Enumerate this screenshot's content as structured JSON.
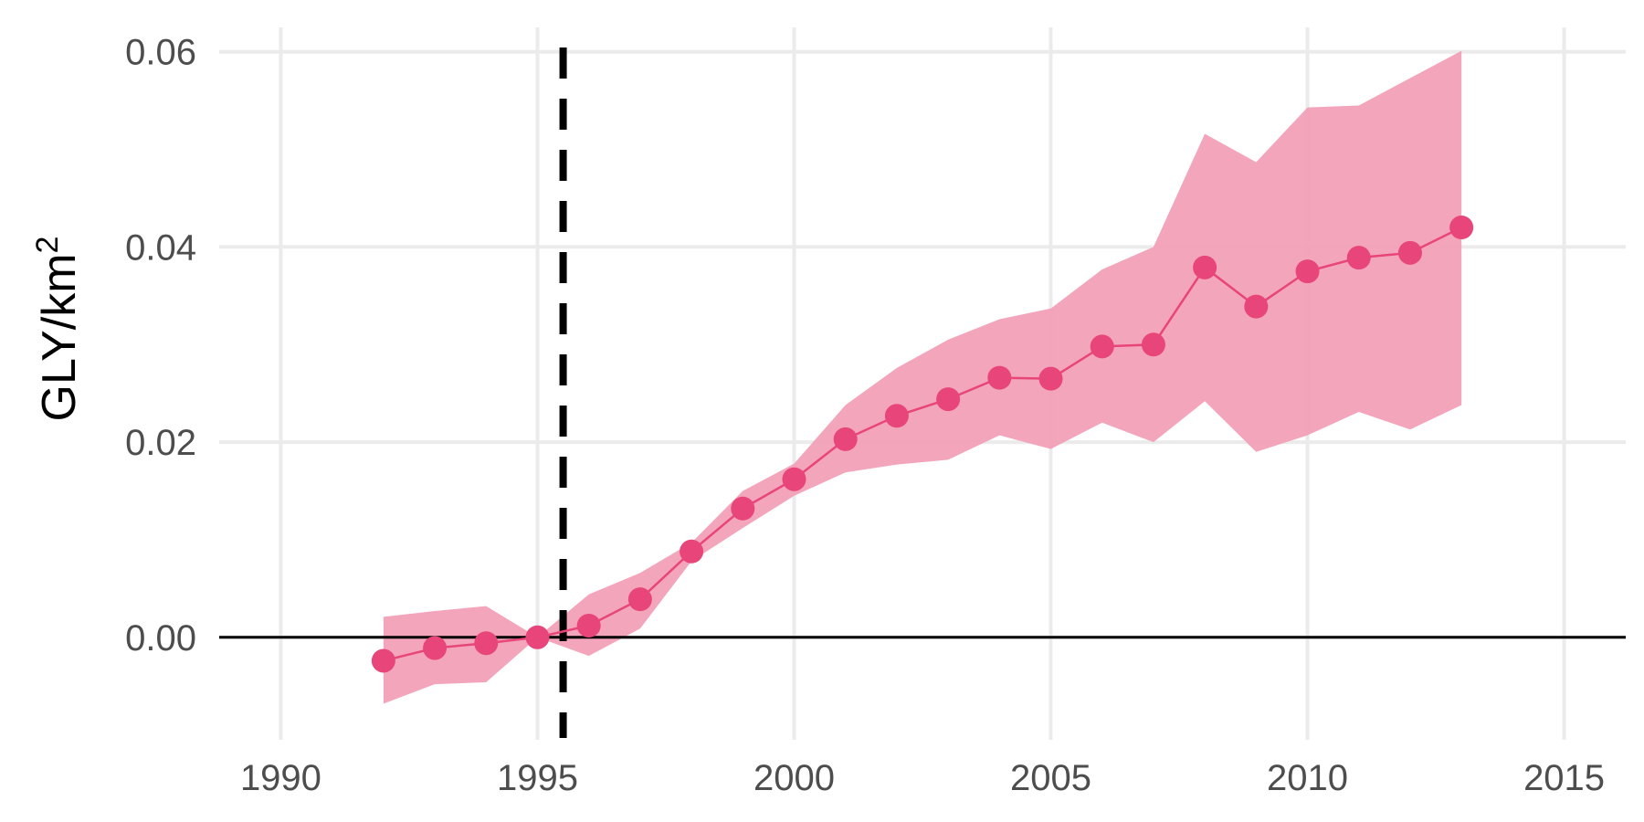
{
  "chart_data": {
    "type": "line",
    "title": "",
    "xlabel": "",
    "ylabel": "GLY/km",
    "ylabel_superscript": "2",
    "xlim": [
      1988.8,
      2016.2
    ],
    "ylim": [
      -0.0105,
      0.0625
    ],
    "x_ticks": [
      1990,
      1995,
      2000,
      2005,
      2010,
      2015
    ],
    "y_ticks": [
      0.0,
      0.02,
      0.04,
      0.06
    ],
    "y_tick_labels": [
      "0.00",
      "0.02",
      "0.04",
      "0.06"
    ],
    "grid": true,
    "reference_hline": 0.0,
    "reference_vline": 1995.5,
    "colors": {
      "series": "#e8457a",
      "band": "#f2a0b7",
      "grid": "#ebebeb",
      "reference": "#000000"
    },
    "series": [
      {
        "x": [
          1992,
          1993,
          1994,
          1995,
          1996,
          1997,
          1998,
          1999,
          2000,
          2001,
          2002,
          2003,
          2004,
          2005,
          2006,
          2007,
          2008,
          2009,
          2010,
          2011,
          2012,
          2013
        ],
        "y": [
          -0.0024,
          -0.0011,
          -0.0006,
          0.0,
          0.0012,
          0.0039,
          0.0088,
          0.0132,
          0.0162,
          0.0203,
          0.0227,
          0.0244,
          0.0266,
          0.0265,
          0.0298,
          0.03,
          0.0379,
          0.0339,
          0.0375,
          0.0389,
          0.0394,
          0.042
        ],
        "lower": [
          -0.0068,
          -0.0048,
          -0.0046,
          0.0,
          -0.0019,
          0.0009,
          0.0078,
          0.0112,
          0.0145,
          0.0169,
          0.0177,
          0.0182,
          0.0207,
          0.0193,
          0.022,
          0.02,
          0.0242,
          0.019,
          0.0207,
          0.0231,
          0.0213,
          0.0238
        ],
        "upper": [
          0.0021,
          0.0027,
          0.0032,
          0.0,
          0.0044,
          0.0066,
          0.0097,
          0.015,
          0.0178,
          0.0238,
          0.0276,
          0.0305,
          0.0326,
          0.0337,
          0.0377,
          0.04,
          0.0516,
          0.0487,
          0.0543,
          0.0545,
          0.0573,
          0.0601
        ]
      }
    ]
  }
}
